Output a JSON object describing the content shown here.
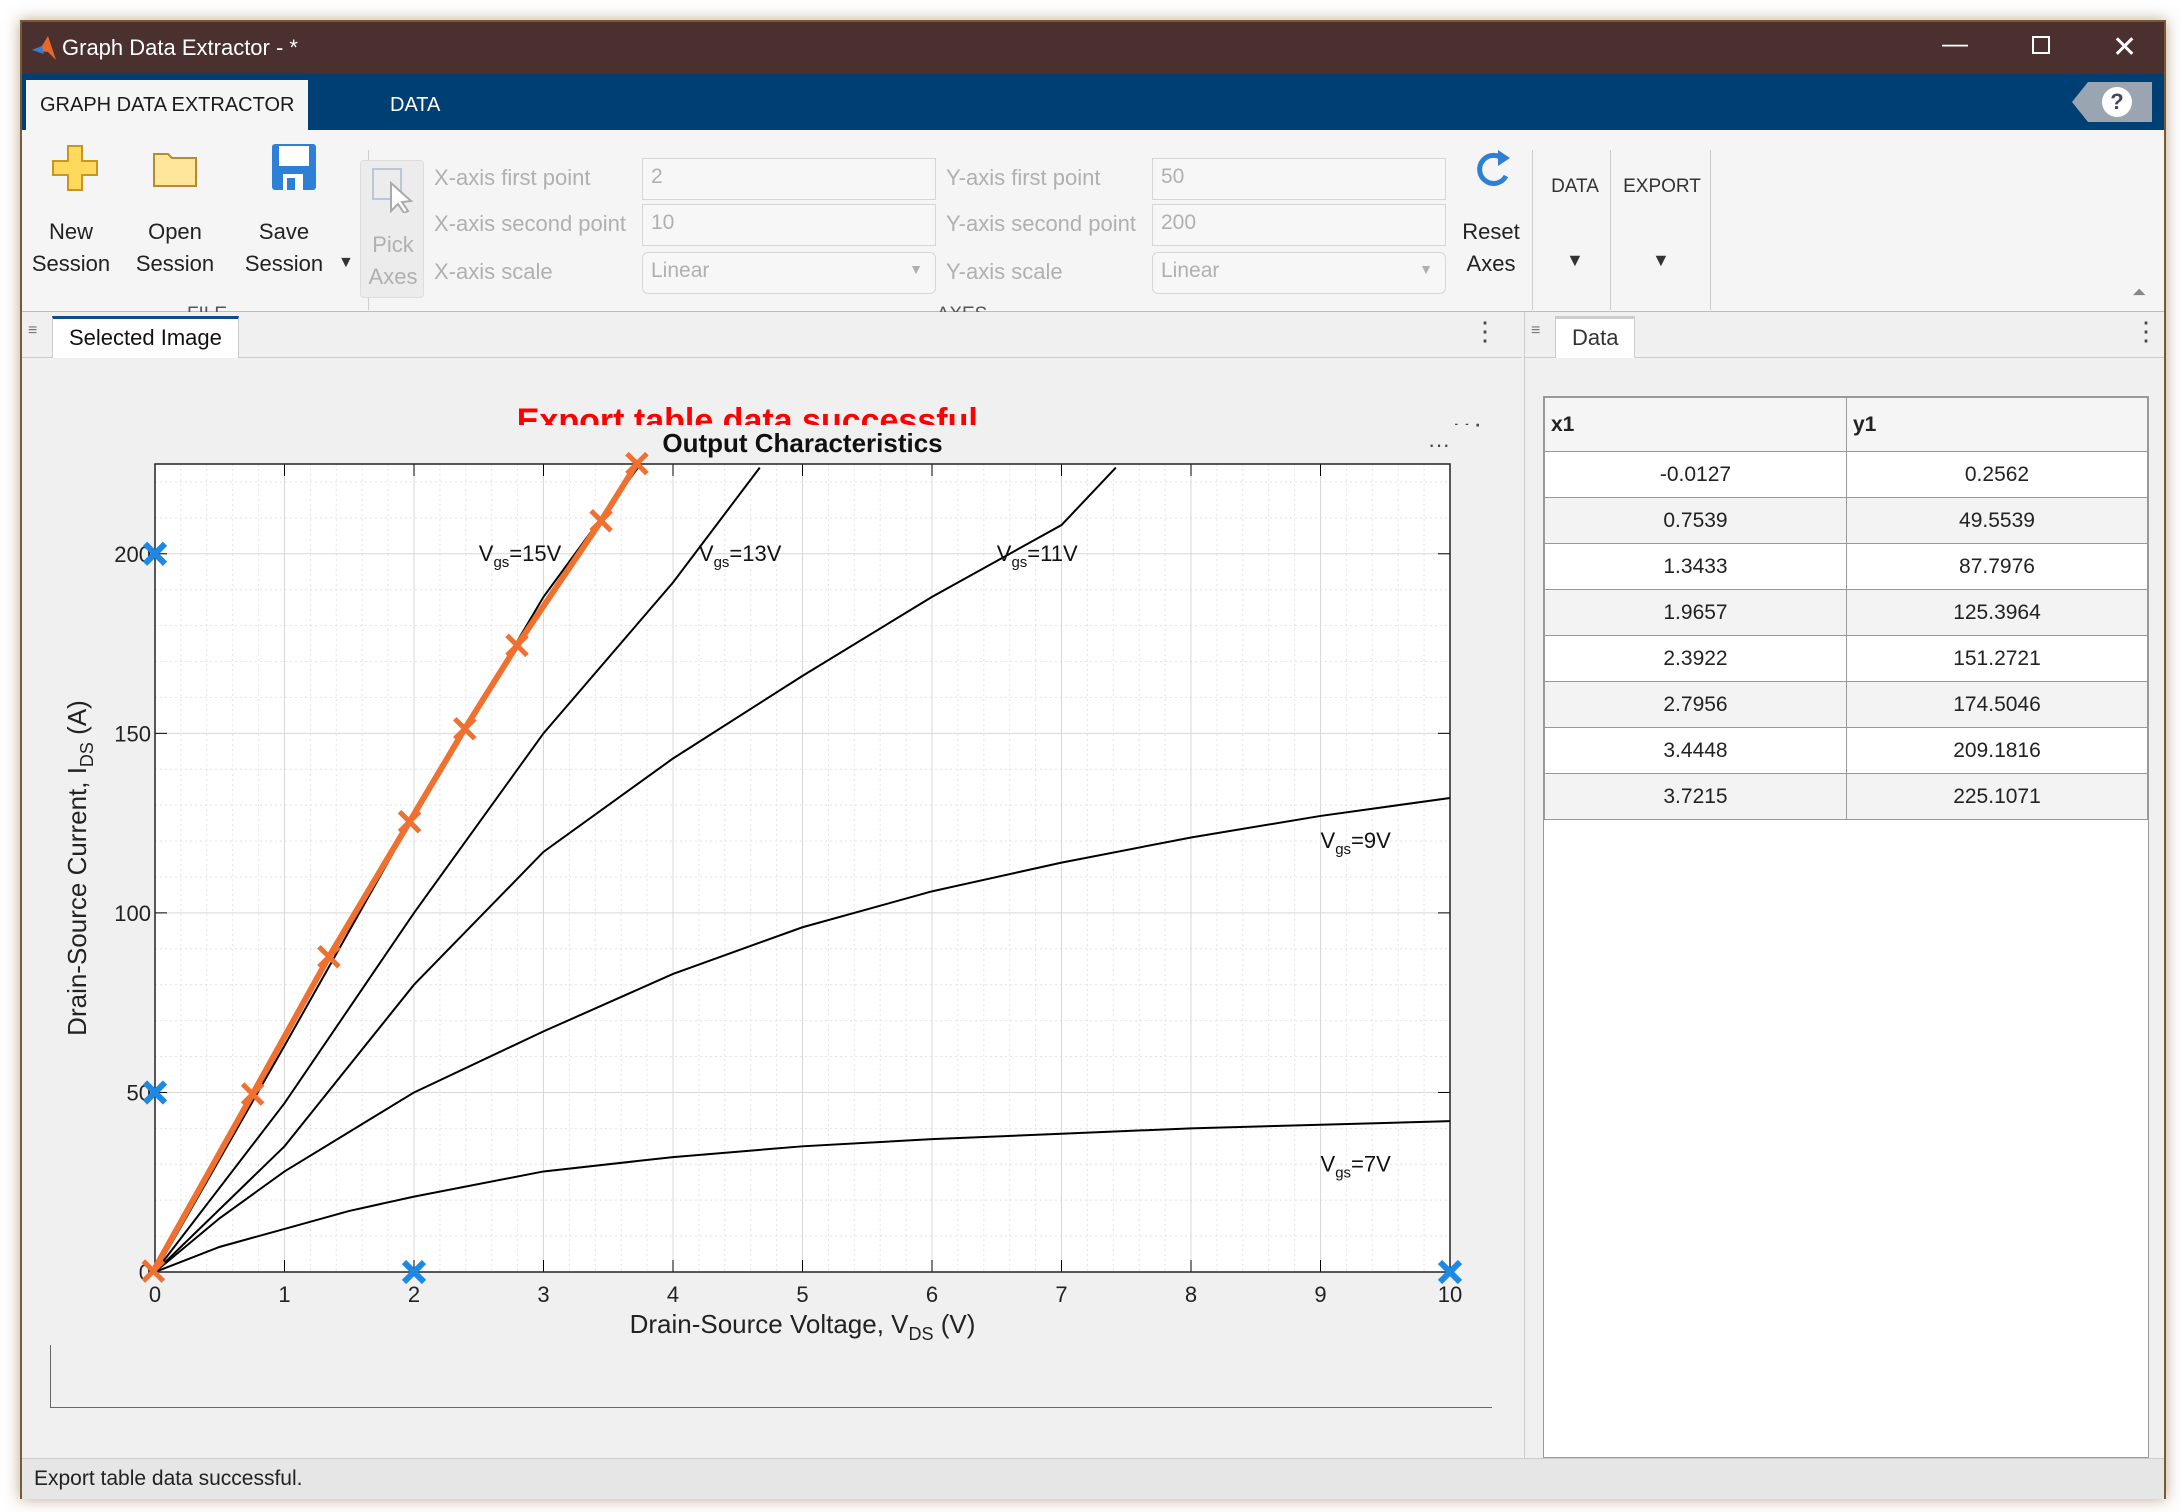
{
  "window": {
    "title": "Graph Data Extractor - *"
  },
  "ribbon_tabs": [
    {
      "label": "GRAPH DATA EXTRACTOR",
      "active": true
    },
    {
      "label": "DATA",
      "active": false
    }
  ],
  "file_group": {
    "label": "FILE",
    "new_line1": "New",
    "new_line2": "Session",
    "open_line1": "Open",
    "open_line2": "Session",
    "save_line1": "Save",
    "save_line2": "Session"
  },
  "axes_group": {
    "label": "AXES",
    "pick_line1": "Pick",
    "pick_line2": "Axes",
    "x_first_label": "X-axis first point",
    "x_first_value": "2",
    "x_second_label": "X-axis second point",
    "x_second_value": "10",
    "x_scale_label": "X-axis scale",
    "x_scale_value": "Linear",
    "y_first_label": "Y-axis first point",
    "y_first_value": "50",
    "y_second_label": "Y-axis second point",
    "y_second_value": "200",
    "y_scale_label": "Y-axis scale",
    "y_scale_value": "Linear",
    "reset_line1": "Reset",
    "reset_line2": "Axes"
  },
  "data_menu": "DATA",
  "export_menu": "EXPORT",
  "left_panel": {
    "tab": "Selected Image",
    "message": "Export table data successful."
  },
  "right_panel": {
    "tab": "Data"
  },
  "table": {
    "columns": [
      "x1",
      "y1"
    ],
    "rows": [
      [
        "-0.0127",
        "0.2562"
      ],
      [
        "0.7539",
        "49.5539"
      ],
      [
        "1.3433",
        "87.7976"
      ],
      [
        "1.9657",
        "125.3964"
      ],
      [
        "2.3922",
        "151.2721"
      ],
      [
        "2.7956",
        "174.5046"
      ],
      [
        "3.4448",
        "209.1816"
      ],
      [
        "3.7215",
        "225.1071"
      ]
    ]
  },
  "status": "Export table data successful.",
  "colors": {
    "titlebar": "#4b3030",
    "tabbar": "#003f73",
    "extracted": "#f07030",
    "calibration": "#1e88e5",
    "message": "#ff0000"
  },
  "chart_data": {
    "type": "line",
    "title": "Output Characteristics",
    "xlabel": "Drain-Source  Voltage, V",
    "xlabel_sub": "DS",
    "xlabel_unit": " (V)",
    "ylabel": "Drain-Source Current, I",
    "ylabel_sub": "DS",
    "ylabel_unit": " (A)",
    "xlim": [
      0,
      10
    ],
    "ylim": [
      0,
      225
    ],
    "xticks": [
      "0",
      "1",
      "2",
      "3",
      "4",
      "5",
      "6",
      "7",
      "8",
      "9",
      "10"
    ],
    "yticks": [
      "0",
      "50",
      "100",
      "150",
      "200"
    ],
    "grid": true,
    "series": [
      {
        "label": "Vgs=7V",
        "x": [
          0,
          0.5,
          1,
          1.5,
          2,
          3,
          4,
          5,
          6,
          7,
          8,
          9,
          10
        ],
        "y": [
          0,
          7,
          12,
          17,
          21,
          28,
          32,
          35,
          37,
          38.5,
          40,
          41,
          42
        ]
      },
      {
        "label": "Vgs=9V",
        "x": [
          0,
          0.5,
          1,
          2,
          3,
          4,
          5,
          6,
          7,
          8,
          9,
          10
        ],
        "y": [
          0,
          15,
          28,
          50,
          67,
          83,
          96,
          106,
          114,
          121,
          127,
          132
        ]
      },
      {
        "label": "Vgs=11V",
        "x": [
          0,
          1,
          2,
          3,
          4,
          5,
          6,
          7,
          7.42
        ],
        "y": [
          0,
          35,
          80,
          117,
          143,
          166,
          188,
          208,
          224
        ]
      },
      {
        "label": "Vgs=13V",
        "x": [
          0,
          1,
          2,
          3,
          4,
          4.67
        ],
        "y": [
          0,
          47,
          100,
          150,
          192,
          224
        ]
      },
      {
        "label": "Vgs=15V",
        "x": [
          0,
          1,
          2,
          3,
          3.75
        ],
        "y": [
          0,
          63,
          127,
          188,
          225
        ]
      }
    ],
    "annotations": [
      {
        "base": "V",
        "sub": "gs",
        "tail": "=15V",
        "x": 2.5,
        "y": 198
      },
      {
        "base": "V",
        "sub": "gs",
        "tail": "=13V",
        "x": 4.2,
        "y": 198
      },
      {
        "base": "V",
        "sub": "gs",
        "tail": "=11V",
        "x": 6.5,
        "y": 198
      },
      {
        "base": "V",
        "sub": "gs",
        "tail": "=9V",
        "x": 9.0,
        "y": 118
      },
      {
        "base": "V",
        "sub": "gs",
        "tail": "=7V",
        "x": 9.0,
        "y": 28
      }
    ],
    "extracted": {
      "x": [
        -0.0127,
        0.7539,
        1.3433,
        1.9657,
        2.3922,
        2.7956,
        3.4448,
        3.7215
      ],
      "y": [
        0.2562,
        49.5539,
        87.7976,
        125.3964,
        151.2721,
        174.5046,
        209.1816,
        225.1071
      ]
    },
    "calibration_points": {
      "x": [
        [
          2,
          0
        ],
        [
          10,
          0
        ]
      ],
      "y": [
        [
          0,
          50
        ],
        [
          0,
          200
        ]
      ]
    }
  }
}
